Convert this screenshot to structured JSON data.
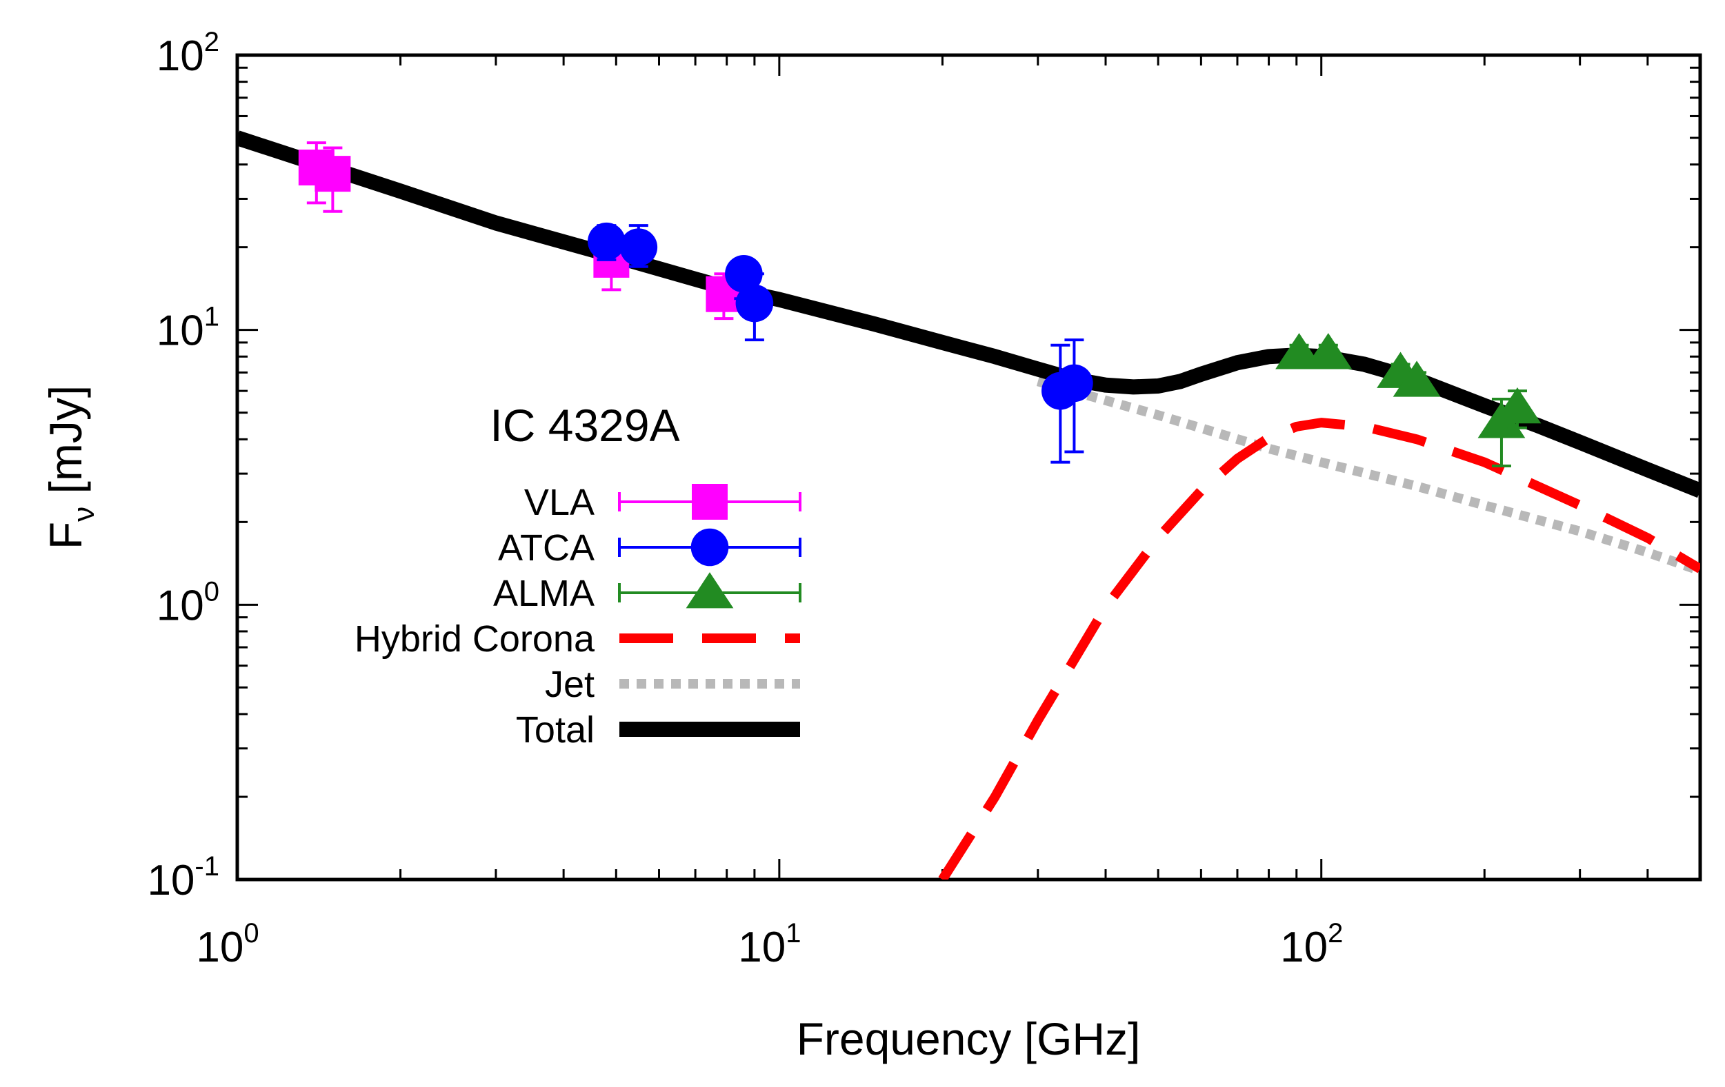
{
  "chart_data": {
    "type": "line",
    "title": "IC 4329A",
    "xlabel": "Frequency [GHz]",
    "ylabel": {
      "base": "F",
      "subscript": "ν",
      "unit": "[mJy]"
    },
    "xscale": "log",
    "yscale": "log",
    "xlim": [
      1,
      500
    ],
    "ylim": [
      0.1,
      100
    ],
    "xticks": [
      {
        "value": 1,
        "base": "10",
        "exp": "0"
      },
      {
        "value": 10,
        "base": "10",
        "exp": "1"
      },
      {
        "value": 100,
        "base": "10",
        "exp": "2"
      }
    ],
    "yticks": [
      {
        "value": 0.1,
        "base": "10",
        "exp": "-1"
      },
      {
        "value": 1,
        "base": "10",
        "exp": "0"
      },
      {
        "value": 10,
        "base": "10",
        "exp": "1"
      },
      {
        "value": 100,
        "base": "10",
        "exp": "2"
      }
    ],
    "legend_position": "left-center",
    "series": [
      {
        "name": "VLA",
        "kind": "points",
        "marker": "square",
        "color": "#ff00ff",
        "points": [
          {
            "x": 1.4,
            "y": 39,
            "lo": 29,
            "hi": 48
          },
          {
            "x": 1.5,
            "y": 37,
            "lo": 27,
            "hi": 46
          },
          {
            "x": 4.9,
            "y": 18,
            "lo": 14,
            "hi": 22
          },
          {
            "x": 7.9,
            "y": 13.5,
            "lo": 11,
            "hi": 16
          }
        ]
      },
      {
        "name": "ATCA",
        "kind": "points",
        "marker": "circle",
        "color": "#0000ff",
        "points": [
          {
            "x": 4.8,
            "y": 21,
            "lo": 18,
            "hi": 24
          },
          {
            "x": 5.5,
            "y": 20,
            "lo": 17,
            "hi": 24
          },
          {
            "x": 8.6,
            "y": 16,
            "lo": 13,
            "hi": 16.5
          },
          {
            "x": 9.0,
            "y": 12.5,
            "lo": 9.2,
            "hi": 16
          },
          {
            "x": 33,
            "y": 6.0,
            "lo": 3.3,
            "hi": 8.8
          },
          {
            "x": 35,
            "y": 6.4,
            "lo": 3.6,
            "hi": 9.2
          }
        ]
      },
      {
        "name": "ALMA",
        "kind": "points",
        "marker": "triangle",
        "color": "#228b22",
        "points": [
          {
            "x": 91,
            "y": 8.2,
            "lo": 7.6,
            "hi": 8.8
          },
          {
            "x": 103,
            "y": 8.2,
            "lo": 7.6,
            "hi": 8.8
          },
          {
            "x": 140,
            "y": 7.0,
            "lo": 6.5,
            "hi": 7.5
          },
          {
            "x": 150,
            "y": 6.5,
            "lo": 6.0,
            "hi": 7.0
          },
          {
            "x": 215,
            "y": 4.6,
            "lo": 3.2,
            "hi": 5.6
          },
          {
            "x": 230,
            "y": 5.2,
            "lo": 4.4,
            "hi": 6.0
          }
        ]
      },
      {
        "name": "Hybrid Corona",
        "kind": "line",
        "style": "dashed",
        "color": "#ff0000",
        "x": [
          20,
          25,
          30,
          40,
          50,
          60,
          70,
          80,
          90,
          100,
          120,
          150,
          200,
          300,
          400,
          500
        ],
        "y": [
          0.1,
          0.2,
          0.38,
          0.98,
          1.75,
          2.6,
          3.4,
          4.05,
          4.45,
          4.6,
          4.45,
          4.0,
          3.3,
          2.3,
          1.75,
          1.35
        ]
      },
      {
        "name": "Jet",
        "kind": "line",
        "style": "dotted",
        "color": "#b8b8b8",
        "x": [
          30,
          50,
          80,
          100,
          150,
          200,
          300,
          400,
          500
        ],
        "y": [
          6.5,
          4.9,
          3.7,
          3.3,
          2.7,
          2.3,
          1.85,
          1.55,
          1.33
        ]
      },
      {
        "name": "Total",
        "kind": "line",
        "style": "solid",
        "color": "#000000",
        "x": [
          1,
          2,
          3,
          5,
          8,
          10,
          15,
          20,
          25,
          30,
          35,
          40,
          45,
          50,
          55,
          60,
          70,
          80,
          90,
          100,
          120,
          150,
          200,
          250,
          300,
          400,
          500
        ],
        "y": [
          50,
          32,
          24.5,
          18.5,
          14.2,
          12.9,
          10.5,
          9.0,
          8.0,
          7.2,
          6.6,
          6.3,
          6.2,
          6.25,
          6.5,
          6.9,
          7.6,
          8.0,
          8.1,
          8.0,
          7.5,
          6.6,
          5.3,
          4.5,
          3.9,
          3.1,
          2.6
        ]
      }
    ]
  }
}
